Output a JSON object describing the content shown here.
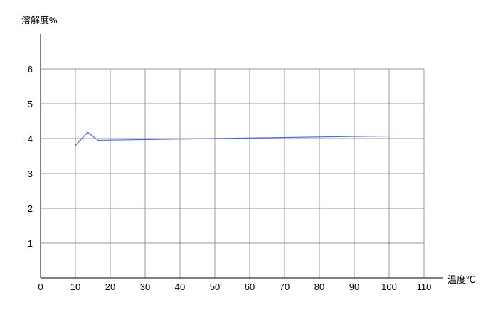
{
  "chart_data": {
    "type": "line",
    "title": "",
    "xlabel": "温度℃",
    "ylabel": "溶解度%",
    "xlim": [
      0,
      110
    ],
    "ylim": [
      0,
      6.9
    ],
    "xticks": [
      0,
      10,
      20,
      30,
      40,
      50,
      60,
      70,
      80,
      90,
      100,
      110
    ],
    "yticks": [
      1,
      2,
      3,
      4,
      5,
      6
    ],
    "grid": true,
    "legend": "none",
    "series": [
      {
        "color": "#4a63e0",
        "x": [
          10,
          13.5,
          16.5,
          50,
          90,
          100
        ],
        "y": [
          3.8,
          4.18,
          3.95,
          4.0,
          4.06,
          4.07
        ]
      }
    ]
  }
}
